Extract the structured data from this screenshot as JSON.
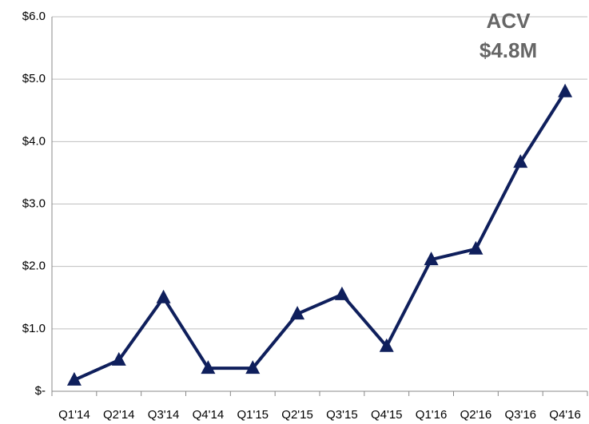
{
  "chart_data": {
    "type": "line",
    "annotation": [
      "ACV",
      "$4.8M"
    ],
    "categories": [
      "Q1'14",
      "Q2'14",
      "Q3'14",
      "Q4'14",
      "Q1'15",
      "Q2'15",
      "Q3'15",
      "Q4'15",
      "Q1'16",
      "Q2'16",
      "Q3'16",
      "Q4'16"
    ],
    "series": [
      {
        "name": "ACV",
        "color": "#0f1f5c",
        "values": [
          0.18,
          0.5,
          1.5,
          0.37,
          0.37,
          1.24,
          1.55,
          0.72,
          2.11,
          2.28,
          3.67,
          4.8
        ]
      }
    ],
    "ylim": [
      0,
      6
    ],
    "yticks": [
      {
        "value": 0,
        "label": "$-"
      },
      {
        "value": 1,
        "label": "$1.0"
      },
      {
        "value": 2,
        "label": "$2.0"
      },
      {
        "value": 3,
        "label": "$3.0"
      },
      {
        "value": 4,
        "label": "$4.0"
      },
      {
        "value": 5,
        "label": "$5.0"
      },
      {
        "value": 6,
        "label": "$6.0"
      }
    ],
    "grid": true
  }
}
